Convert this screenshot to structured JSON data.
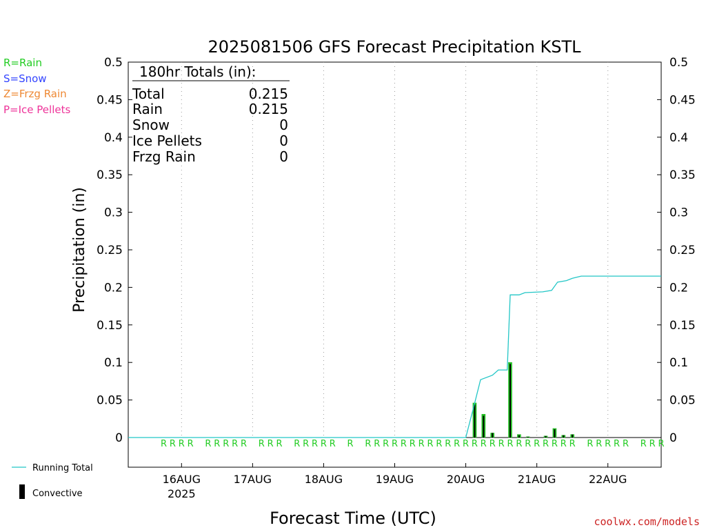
{
  "chart_data": {
    "type": "bar",
    "title": "2025081506 GFS Forecast Precipitation KSTL",
    "ylabel": "Precipitation (in)",
    "xlabel": "Forecast Time (UTC)",
    "ylim": [
      0,
      0.5
    ],
    "yticks": [
      "0",
      "0.05",
      "0.1",
      "0.15",
      "0.2",
      "0.25",
      "0.3",
      "0.35",
      "0.4",
      "0.45",
      "0.5"
    ],
    "xlim": [
      "2025-08-15 06:00",
      "2025-08-22 18:00"
    ],
    "xticks": [
      {
        "label": "16AUG",
        "sub": "2025",
        "time": "2025-08-16 00:00"
      },
      {
        "label": "17AUG",
        "sub": "",
        "time": "2025-08-17 00:00"
      },
      {
        "label": "18AUG",
        "sub": "",
        "time": "2025-08-18 00:00"
      },
      {
        "label": "19AUG",
        "sub": "",
        "time": "2025-08-19 00:00"
      },
      {
        "label": "20AUG",
        "sub": "",
        "time": "2025-08-20 00:00"
      },
      {
        "label": "21AUG",
        "sub": "",
        "time": "2025-08-21 00:00"
      },
      {
        "label": "22AUG",
        "sub": "",
        "time": "2025-08-22 00:00"
      }
    ],
    "grid": "vertical dotted at day boundaries",
    "legend": {
      "precip_types": [
        {
          "text": "R=Rain",
          "color": "#22cc22"
        },
        {
          "text": "S=Snow",
          "color": "#3344ff"
        },
        {
          "text": "Z=Frzg Rain",
          "color": "#ee8833"
        },
        {
          "text": "P=Ice Pellets",
          "color": "#ee3399"
        }
      ],
      "series": [
        {
          "name": "Running Total",
          "color": "#22c6c6",
          "kind": "line"
        },
        {
          "name": "Convective",
          "color": "#000000",
          "kind": "bar"
        }
      ]
    },
    "totals": {
      "heading": "180hr Totals (in):",
      "rows": [
        {
          "label": "Total",
          "value": "0.215"
        },
        {
          "label": "Rain",
          "value": "0.215"
        },
        {
          "label": "Snow",
          "value": "0"
        },
        {
          "label": "Ice Pellets",
          "value": "0"
        },
        {
          "label": "Frzg Rain",
          "value": "0"
        }
      ]
    },
    "precip_bars": [
      {
        "time": "2025-08-20 03:00",
        "total": 0.046,
        "convective": 0.044
      },
      {
        "time": "2025-08-20 06:00",
        "total": 0.031,
        "convective": 0.029
      },
      {
        "time": "2025-08-20 09:00",
        "total": 0.006,
        "convective": 0.006
      },
      {
        "time": "2025-08-20 12:00",
        "total": 0.0,
        "convective": 0.0
      },
      {
        "time": "2025-08-20 15:00",
        "total": 0.1,
        "convective": 0.098
      },
      {
        "time": "2025-08-20 18:00",
        "total": 0.004,
        "convective": 0.003
      },
      {
        "time": "2025-08-20 21:00",
        "total": 0.001,
        "convective": 0.001
      },
      {
        "time": "2025-08-21 00:00",
        "total": 0.0,
        "convective": 0.0
      },
      {
        "time": "2025-08-21 03:00",
        "total": 0.002,
        "convective": 0.002
      },
      {
        "time": "2025-08-21 06:00",
        "total": 0.012,
        "convective": 0.011
      },
      {
        "time": "2025-08-21 09:00",
        "total": 0.003,
        "convective": 0.003
      },
      {
        "time": "2025-08-21 12:00",
        "total": 0.004,
        "convective": 0.004
      }
    ],
    "running_total": [
      {
        "time": "2025-08-15 06:00",
        "value": 0
      },
      {
        "time": "2025-08-20 00:00",
        "value": 0
      },
      {
        "time": "2025-08-20 03:00",
        "value": 0.046
      },
      {
        "time": "2025-08-20 05:00",
        "value": 0.077
      },
      {
        "time": "2025-08-20 09:00",
        "value": 0.083
      },
      {
        "time": "2025-08-20 11:00",
        "value": 0.09
      },
      {
        "time": "2025-08-20 14:00",
        "value": 0.09
      },
      {
        "time": "2025-08-20 15:00",
        "value": 0.19
      },
      {
        "time": "2025-08-20 18:00",
        "value": 0.19
      },
      {
        "time": "2025-08-20 20:00",
        "value": 0.193
      },
      {
        "time": "2025-08-21 02:00",
        "value": 0.194
      },
      {
        "time": "2025-08-21 05:00",
        "value": 0.196
      },
      {
        "time": "2025-08-21 07:00",
        "value": 0.207
      },
      {
        "time": "2025-08-21 10:00",
        "value": 0.209
      },
      {
        "time": "2025-08-21 12:00",
        "value": 0.212
      },
      {
        "time": "2025-08-21 15:00",
        "value": 0.215
      },
      {
        "time": "2025-08-22 18:00",
        "value": 0.215
      }
    ],
    "rain_markers": {
      "letter": "R",
      "times": [
        "2025-08-15 18:00",
        "2025-08-15 21:00",
        "2025-08-16 00:00",
        "2025-08-16 03:00",
        "2025-08-16 09:00",
        "2025-08-16 12:00",
        "2025-08-16 15:00",
        "2025-08-16 18:00",
        "2025-08-16 21:00",
        "2025-08-17 03:00",
        "2025-08-17 06:00",
        "2025-08-17 09:00",
        "2025-08-17 15:00",
        "2025-08-17 18:00",
        "2025-08-17 21:00",
        "2025-08-18 00:00",
        "2025-08-18 03:00",
        "2025-08-18 09:00",
        "2025-08-18 15:00",
        "2025-08-18 18:00",
        "2025-08-18 21:00",
        "2025-08-19 00:00",
        "2025-08-19 03:00",
        "2025-08-19 06:00",
        "2025-08-19 09:00",
        "2025-08-19 12:00",
        "2025-08-19 15:00",
        "2025-08-19 18:00",
        "2025-08-19 21:00",
        "2025-08-20 00:00",
        "2025-08-20 03:00",
        "2025-08-20 06:00",
        "2025-08-20 09:00",
        "2025-08-20 12:00",
        "2025-08-20 15:00",
        "2025-08-20 18:00",
        "2025-08-20 21:00",
        "2025-08-21 00:00",
        "2025-08-21 03:00",
        "2025-08-21 06:00",
        "2025-08-21 09:00",
        "2025-08-21 12:00",
        "2025-08-21 18:00",
        "2025-08-21 21:00",
        "2025-08-22 00:00",
        "2025-08-22 03:00",
        "2025-08-22 06:00",
        "2025-08-22 12:00",
        "2025-08-22 15:00",
        "2025-08-22 18:00"
      ]
    }
  },
  "footer": {
    "credit": "coolwx.com/models"
  },
  "colors": {
    "rain": "#22cc22",
    "running_total": "#22c6c6",
    "bar_outline": "#22aa22",
    "credit": "#cc2222",
    "axis": "#000000",
    "grid": "#999999"
  }
}
